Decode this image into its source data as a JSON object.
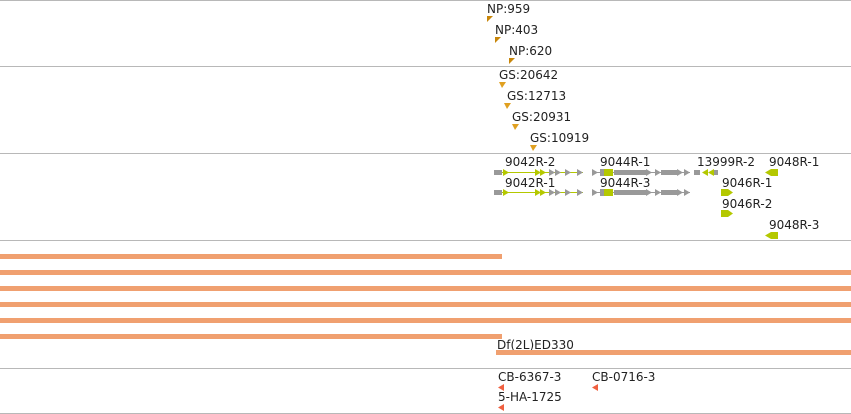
{
  "colors": {
    "background": "#ffffff",
    "separator": "#b8b8b8",
    "text": "#222222",
    "np_marker": "#c8860a",
    "gs_marker": "#e0a020",
    "gene_exon": "#b4c800",
    "gene_noncoding": "#999999",
    "gene_intron_line": "#b4c800",
    "deficiency_bar": "#f0a070",
    "construct_marker": "#f06040"
  },
  "tracks": {
    "np_insertions": [
      {
        "label": "NP:959",
        "icon": "triangle-down-left-marker"
      },
      {
        "label": "NP:403",
        "icon": "triangle-down-left-marker"
      },
      {
        "label": "NP:620",
        "icon": "triangle-down-left-marker"
      }
    ],
    "gs_insertions": [
      {
        "label": "GS:20642",
        "icon": "triangle-down-marker"
      },
      {
        "label": "GS:12713",
        "icon": "triangle-down-marker"
      },
      {
        "label": "GS:20931",
        "icon": "triangle-down-marker"
      },
      {
        "label": "GS:10919",
        "icon": "triangle-down-marker"
      }
    ],
    "transcripts": [
      {
        "label": "9042R-2",
        "strand": "forward"
      },
      {
        "label": "9042R-1",
        "strand": "forward"
      },
      {
        "label": "9044R-1",
        "strand": "forward"
      },
      {
        "label": "9044R-3",
        "strand": "forward"
      },
      {
        "label": "13999R-2",
        "strand": "reverse"
      },
      {
        "label": "9048R-1",
        "strand": "reverse"
      },
      {
        "label": "9046R-1",
        "strand": "forward"
      },
      {
        "label": "9046R-2",
        "strand": "forward"
      },
      {
        "label": "9048R-3",
        "strand": "reverse"
      }
    ],
    "deficiencies": [
      {
        "label": ""
      },
      {
        "label": ""
      },
      {
        "label": ""
      },
      {
        "label": ""
      },
      {
        "label": ""
      },
      {
        "label": ""
      },
      {
        "label": "Df(2L)ED330"
      }
    ],
    "constructs": [
      {
        "label": "CB-6367-3",
        "icon": "triangle-left-marker"
      },
      {
        "label": "CB-0716-3",
        "icon": "triangle-left-marker"
      },
      {
        "label": "5-HA-1725",
        "icon": "triangle-left-marker"
      }
    ]
  }
}
